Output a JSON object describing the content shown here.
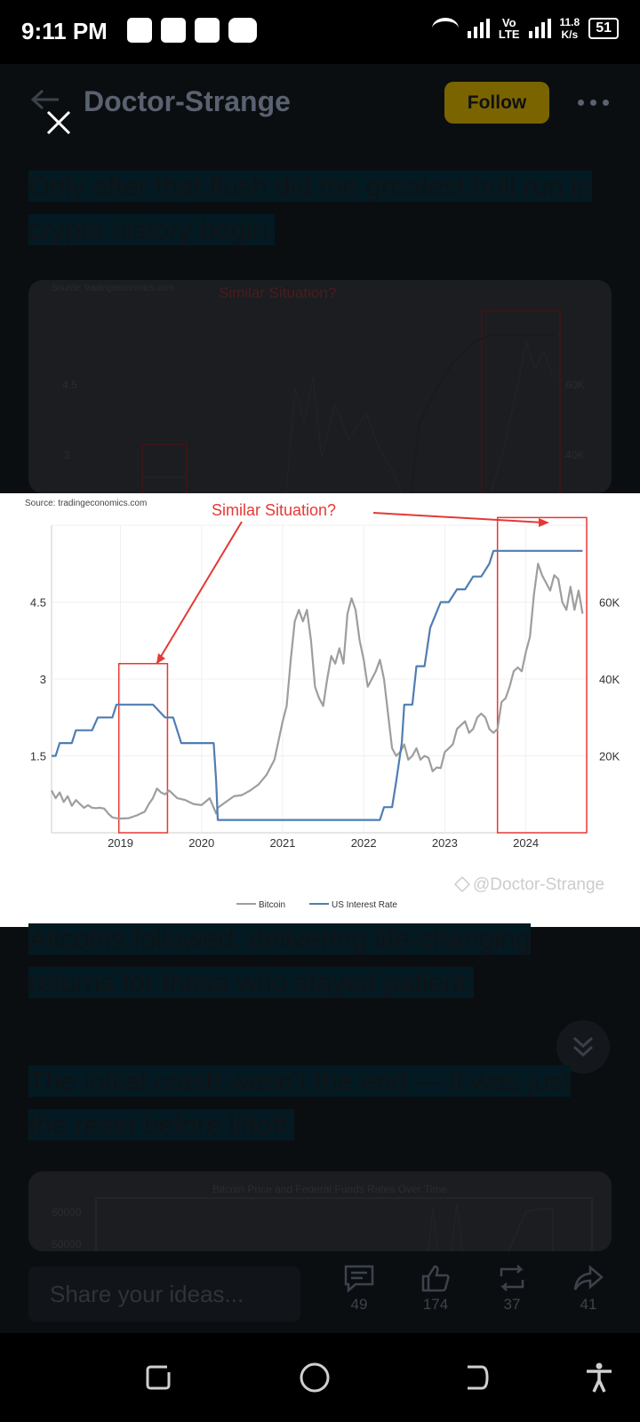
{
  "status": {
    "time": "9:11 PM",
    "lte_top": "Vo",
    "lte_bottom": "LTE",
    "speed_top": "11.8",
    "speed_bottom": "K/s",
    "battery": "51"
  },
  "header": {
    "author": "Doctor-Strange",
    "follow_label": "Follow"
  },
  "article": {
    "para1": "Only after that flush did the greatest bull run in crypto history begin.",
    "para2": "Altcoins followed, delivering life-changing returns for those who stayed patient.",
    "para3": "The initial crash wasn’t the end — it was just the reset before liftoff."
  },
  "bg_chart1": {
    "source": "Source: tradingeconomics.com",
    "annotation": "Similar Situation?",
    "left_ticks": [
      "4.5",
      "3"
    ],
    "right_ticks": [
      "60K",
      "40K"
    ]
  },
  "bg_chart2": {
    "title": "Bitcoin Price and Federal Funds Rates Over Time",
    "ticks": [
      "60000",
      "50000"
    ]
  },
  "chart_data": {
    "type": "line",
    "source": "Source: tradingeconomics.com",
    "annotation": "Similar Situation?",
    "watermark": "@Doctor-Strange",
    "x_ticks": [
      "2019",
      "2020",
      "2021",
      "2022",
      "2023",
      "2024"
    ],
    "y_left_ticks": [
      "1.5",
      "3",
      "4.5"
    ],
    "y_right_ticks": [
      "20K",
      "40K",
      "60K"
    ],
    "y_left_range": [
      0,
      6
    ],
    "y_right_range": [
      0,
      80000
    ],
    "x_range": [
      2018.15,
      2024.75
    ],
    "highlight_boxes": [
      {
        "x_start": 2018.98,
        "x_end": 2019.58,
        "y_low": 0,
        "y_high": 3.3
      },
      {
        "x_start": 2023.65,
        "x_end": 2024.75,
        "y_low": 0,
        "y_high": 6.15
      }
    ],
    "series": [
      {
        "name": "US Interest Rate",
        "color": "#4f7db3",
        "axis": "left",
        "x": [
          2018.15,
          2018.2,
          2018.25,
          2018.4,
          2018.45,
          2018.65,
          2018.72,
          2018.9,
          2018.95,
          2019.4,
          2019.55,
          2019.65,
          2019.75,
          2019.95,
          2020.15,
          2020.18,
          2020.2,
          2022.2,
          2022.25,
          2022.35,
          2022.4,
          2022.47,
          2022.5,
          2022.6,
          2022.65,
          2022.75,
          2022.82,
          2022.95,
          2023.05,
          2023.15,
          2023.25,
          2023.35,
          2023.45,
          2023.55,
          2023.6,
          2024.7
        ],
        "y": [
          1.5,
          1.5,
          1.75,
          1.75,
          2.0,
          2.0,
          2.25,
          2.25,
          2.5,
          2.5,
          2.25,
          2.25,
          1.75,
          1.75,
          1.75,
          1.0,
          0.25,
          0.25,
          0.5,
          0.5,
          1.0,
          1.75,
          2.5,
          2.5,
          3.25,
          3.25,
          4.0,
          4.5,
          4.5,
          4.75,
          4.75,
          5.0,
          5.0,
          5.25,
          5.5,
          5.5
        ]
      },
      {
        "name": "Bitcoin",
        "color": "#9e9e9e",
        "axis": "right",
        "x": [
          2018.15,
          2018.2,
          2018.25,
          2018.3,
          2018.35,
          2018.4,
          2018.45,
          2018.5,
          2018.55,
          2018.6,
          2018.65,
          2018.7,
          2018.75,
          2018.8,
          2018.85,
          2018.9,
          2018.95,
          2019.0,
          2019.1,
          2019.2,
          2019.3,
          2019.35,
          2019.4,
          2019.45,
          2019.5,
          2019.55,
          2019.6,
          2019.7,
          2019.8,
          2019.9,
          2020.0,
          2020.1,
          2020.18,
          2020.2,
          2020.3,
          2020.4,
          2020.5,
          2020.6,
          2020.7,
          2020.8,
          2020.9,
          2021.0,
          2021.05,
          2021.1,
          2021.15,
          2021.2,
          2021.25,
          2021.3,
          2021.35,
          2021.4,
          2021.45,
          2021.5,
          2021.55,
          2021.6,
          2021.65,
          2021.7,
          2021.75,
          2021.8,
          2021.85,
          2021.9,
          2021.95,
          2022.0,
          2022.05,
          2022.1,
          2022.15,
          2022.2,
          2022.25,
          2022.3,
          2022.35,
          2022.4,
          2022.45,
          2022.5,
          2022.55,
          2022.6,
          2022.65,
          2022.7,
          2022.75,
          2022.8,
          2022.85,
          2022.9,
          2022.95,
          2023.0,
          2023.05,
          2023.1,
          2023.15,
          2023.2,
          2023.25,
          2023.3,
          2023.35,
          2023.4,
          2023.45,
          2023.5,
          2023.55,
          2023.6,
          2023.65,
          2023.7,
          2023.75,
          2023.8,
          2023.85,
          2023.9,
          2023.95,
          2024.0,
          2024.05,
          2024.1,
          2024.15,
          2024.2,
          2024.25,
          2024.3,
          2024.35,
          2024.4,
          2024.45,
          2024.5,
          2024.55,
          2024.6,
          2024.65,
          2024.7
        ],
        "y": [
          11000,
          9000,
          10500,
          8000,
          9500,
          7000,
          8500,
          7500,
          6500,
          7200,
          6500,
          6400,
          6500,
          6300,
          5000,
          4000,
          3800,
          3700,
          3800,
          4500,
          5500,
          7500,
          9000,
          11500,
          10500,
          10000,
          11000,
          9000,
          8500,
          7500,
          7200,
          9000,
          5000,
          6500,
          8000,
          9500,
          9800,
          11000,
          12500,
          15000,
          19000,
          29000,
          33000,
          45000,
          55000,
          58000,
          55000,
          58000,
          50000,
          38000,
          35000,
          33000,
          40000,
          46000,
          44000,
          48000,
          44000,
          57000,
          61000,
          58000,
          50000,
          45000,
          38000,
          40000,
          42000,
          45000,
          40000,
          31000,
          22000,
          20000,
          21000,
          23000,
          19000,
          20000,
          22000,
          19000,
          20000,
          19500,
          16000,
          17000,
          16800,
          21000,
          22000,
          23000,
          27000,
          28000,
          29000,
          26000,
          27000,
          30000,
          31000,
          30000,
          27000,
          26000,
          27000,
          34000,
          35000,
          38000,
          42000,
          43000,
          42000,
          47000,
          51000,
          62000,
          70000,
          67000,
          65000,
          63000,
          67000,
          66000,
          60000,
          58000,
          64000,
          58000,
          63000,
          57000
        ]
      }
    ]
  },
  "actions": {
    "share_placeholder": "Share your ideas...",
    "comments": "49",
    "likes": "174",
    "reposts": "37",
    "shares": "41"
  }
}
